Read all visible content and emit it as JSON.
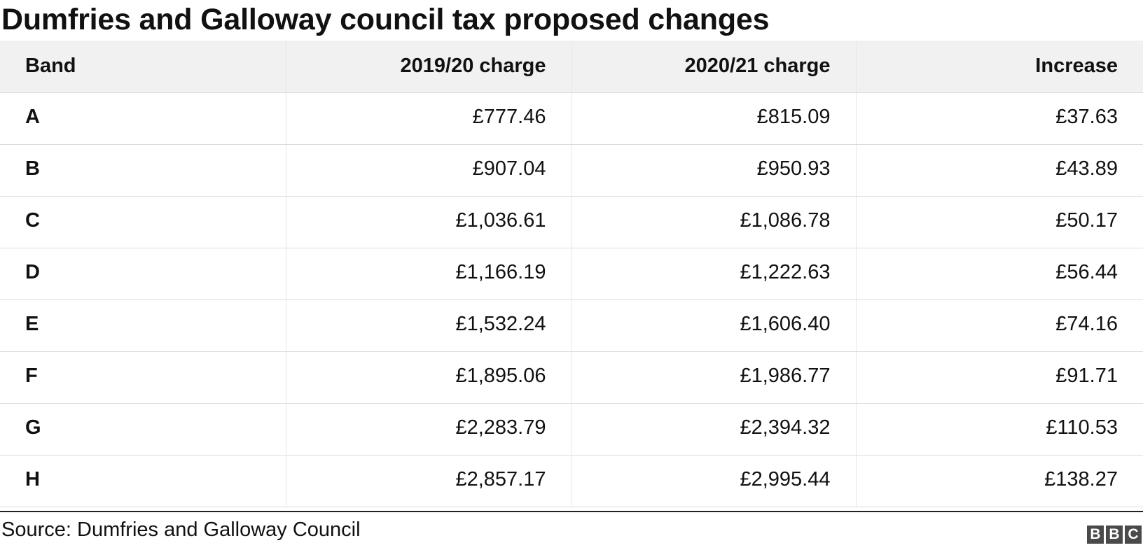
{
  "title": "Dumfries and Galloway council tax proposed changes",
  "source": "Source: Dumfries and Galloway Council",
  "logo": {
    "letters": [
      "B",
      "B",
      "C"
    ]
  },
  "colors": {
    "header_bg": "#f1f1f1",
    "text": "#111111",
    "logo_bg": "#4a4a4a"
  },
  "chart_data": {
    "type": "table",
    "title": "Dumfries and Galloway council tax proposed changes",
    "columns": [
      "Band",
      "2019/20 charge",
      "2020/21 charge",
      "Increase"
    ],
    "rows": [
      [
        "A",
        "£777.46",
        "£815.09",
        "£37.63"
      ],
      [
        "B",
        "£907.04",
        "£950.93",
        "£43.89"
      ],
      [
        "C",
        "£1,036.61",
        "£1,086.78",
        "£50.17"
      ],
      [
        "D",
        "£1,166.19",
        "£1,222.63",
        "£56.44"
      ],
      [
        "E",
        "£1,532.24",
        "£1,606.40",
        "£74.16"
      ],
      [
        "F",
        "£1,895.06",
        "£1,986.77",
        "£91.71"
      ],
      [
        "G",
        "£2,283.79",
        "£2,394.32",
        "£110.53"
      ],
      [
        "H",
        "£2,857.17",
        "£2,995.44",
        "£138.27"
      ]
    ]
  }
}
